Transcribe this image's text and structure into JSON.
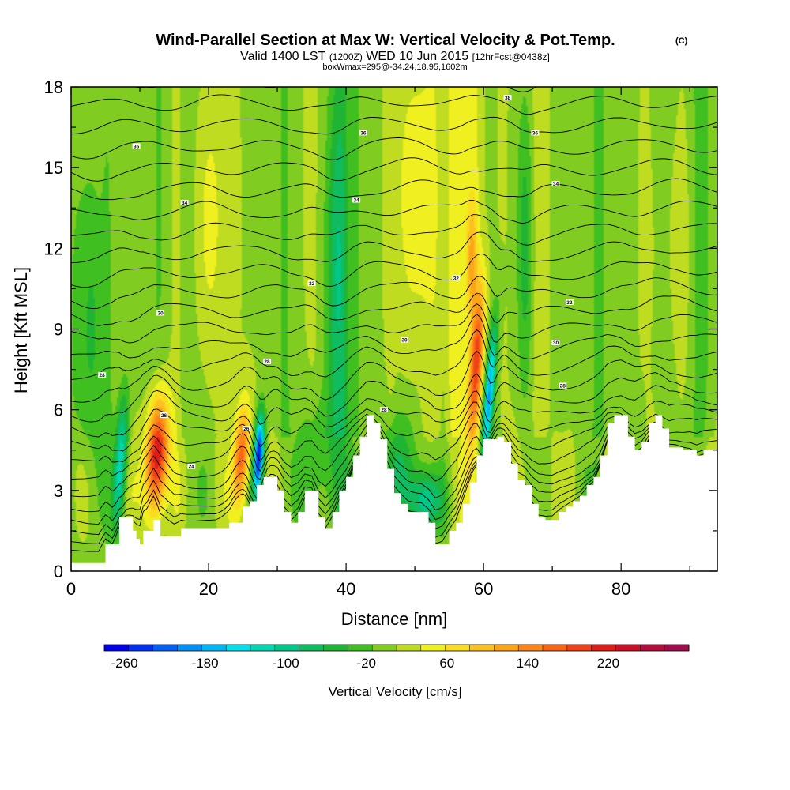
{
  "chart_data": {
    "type": "heatmap",
    "title": "Wind-Parallel Section at Max W: Vertical Velocity & Pot.Temp.",
    "title_mark": "(C)",
    "subtitle_parts": [
      "Valid 1400 LST",
      "(1200Z)",
      "WED 10 Jun 2015",
      "[12hrFcst@0438z]"
    ],
    "subtitle2": "boxWmax=295@-34.24,18.95,1602m",
    "xlabel": "Distance [nm]",
    "ylabel": "Height [Kft MSL]",
    "xlim": [
      0,
      94
    ],
    "ylim": [
      0,
      18
    ],
    "xticks": [
      0,
      20,
      40,
      60,
      80
    ],
    "yticks": [
      0,
      3,
      6,
      9,
      12,
      15,
      18
    ],
    "colorbar": {
      "label": "Vertical Velocity [cm/s]",
      "tick_values": [
        -260,
        -180,
        -100,
        -20,
        60,
        140,
        220
      ],
      "tick_labels": [
        "-260",
        "-180",
        "-100",
        "-20",
        "60",
        "140",
        "220"
      ],
      "range": [
        -280,
        300
      ],
      "colors": [
        "#0000ee",
        "#0030f0",
        "#0060f4",
        "#0090f6",
        "#00b8f8",
        "#00e0ee",
        "#00d8b4",
        "#00c888",
        "#10bc60",
        "#20b434",
        "#40c020",
        "#80cc20",
        "#c0dc20",
        "#f0f020",
        "#fcdc20",
        "#fcc020",
        "#fca418",
        "#fc8418",
        "#f86418",
        "#f04018",
        "#e01c18",
        "#cc1028",
        "#b40c3c",
        "#a00c4c"
      ]
    },
    "terrain": [
      [
        0,
        0.3
      ],
      [
        4,
        0.3
      ],
      [
        5,
        1
      ],
      [
        6,
        1
      ],
      [
        7,
        2
      ],
      [
        8,
        2
      ],
      [
        9,
        1.5
      ],
      [
        9.5,
        1.2
      ],
      [
        10,
        1
      ],
      [
        10.5,
        1.5
      ],
      [
        11,
        1.5
      ],
      [
        12,
        1.9
      ],
      [
        13,
        1.3
      ],
      [
        15,
        1.3
      ],
      [
        16,
        1.6
      ],
      [
        20,
        1.6
      ],
      [
        21,
        1.6
      ],
      [
        23,
        1.8
      ],
      [
        25,
        2.4
      ],
      [
        26,
        2.6
      ],
      [
        27,
        3.2
      ],
      [
        28,
        3.5
      ],
      [
        30,
        3
      ],
      [
        31,
        2.2
      ],
      [
        32,
        1.8
      ],
      [
        33,
        2.2
      ],
      [
        34,
        3
      ],
      [
        35,
        3
      ],
      [
        36,
        2
      ],
      [
        37,
        1.6
      ],
      [
        38,
        2.2
      ],
      [
        39,
        3
      ],
      [
        40,
        3.5
      ],
      [
        41,
        4.3
      ],
      [
        42,
        5
      ],
      [
        43,
        5.8
      ],
      [
        44,
        5.5
      ],
      [
        45,
        4.9
      ],
      [
        46,
        3.8
      ],
      [
        47,
        2.9
      ],
      [
        48,
        2.5
      ],
      [
        49,
        2.2
      ],
      [
        51,
        2.2
      ],
      [
        52,
        1.8
      ],
      [
        53,
        1
      ],
      [
        54,
        1
      ],
      [
        55,
        1.5
      ],
      [
        56,
        1.8
      ],
      [
        57,
        2.5
      ],
      [
        58,
        3.3
      ],
      [
        59,
        4.3
      ],
      [
        60,
        4.9
      ],
      [
        61,
        4.9
      ],
      [
        62,
        5
      ],
      [
        63,
        4.8
      ],
      [
        64,
        4
      ],
      [
        65,
        3.4
      ],
      [
        66,
        3.2
      ],
      [
        67,
        2.5
      ],
      [
        68,
        2
      ],
      [
        69,
        1.9
      ],
      [
        70,
        1.9
      ],
      [
        71,
        2.2
      ],
      [
        72,
        2.4
      ],
      [
        73,
        2.6
      ],
      [
        74,
        2.8
      ],
      [
        75,
        3.2
      ],
      [
        76,
        3.5
      ],
      [
        77,
        4.3
      ],
      [
        78,
        5.5
      ],
      [
        79,
        5.8
      ],
      [
        80,
        5.8
      ],
      [
        81,
        5
      ],
      [
        82,
        4.5
      ],
      [
        83,
        4.8
      ],
      [
        84,
        5.5
      ],
      [
        85,
        5.8
      ],
      [
        86,
        5.3
      ],
      [
        87,
        4.6
      ],
      [
        88,
        4.6
      ],
      [
        89,
        4.5
      ],
      [
        90,
        4.5
      ],
      [
        91,
        4.3
      ],
      [
        92,
        4.5
      ],
      [
        94,
        4.5
      ]
    ],
    "velocity_features": [
      {
        "x": 12.5,
        "z": 4.3,
        "sx": 1.6,
        "sz": 2.2,
        "w": 240,
        "tilt": 0.18
      },
      {
        "x": 24.8,
        "z": 4.3,
        "sx": 1.1,
        "sz": 1.8,
        "w": 160,
        "tilt": 0.22
      },
      {
        "x": 59.0,
        "z": 7.8,
        "sx": 0.9,
        "sz": 2.8,
        "w": 160,
        "tilt": 0.25
      },
      {
        "x": 58.3,
        "z": 11.5,
        "sx": 0.8,
        "sz": 2.2,
        "w": 80,
        "tilt": 0.0
      },
      {
        "x": 7.2,
        "z": 4.0,
        "sx": 0.9,
        "sz": 2.5,
        "w": -140,
        "tilt": 0.2
      },
      {
        "x": 27.3,
        "z": 4.3,
        "sx": 0.7,
        "sz": 1.5,
        "w": -260,
        "tilt": 0.2
      },
      {
        "x": 60.8,
        "z": 6.5,
        "sx": 0.7,
        "sz": 2.6,
        "w": -190,
        "tilt": 0.3
      },
      {
        "x": 51.5,
        "z": 2.6,
        "sx": 2.5,
        "sz": 1.2,
        "w": -120,
        "tilt": 0.0
      },
      {
        "x": 48.0,
        "z": 4.0,
        "sx": 2.8,
        "sz": 2.0,
        "w": -60,
        "tilt": 0.0
      },
      {
        "x": 36.0,
        "z": 4.0,
        "sx": 3.0,
        "sz": 2.5,
        "w": -50,
        "tilt": 0.0
      },
      {
        "x": 3.0,
        "z": 9.0,
        "sx": 2.0,
        "sz": 6.0,
        "w": -50,
        "tilt": 0.0
      },
      {
        "x": 38.5,
        "z": 11.0,
        "sx": 1.5,
        "sz": 6.0,
        "w": -60,
        "tilt": 0.0
      },
      {
        "x": 66.0,
        "z": 12.0,
        "sx": 1.2,
        "sz": 6.0,
        "w": -60,
        "tilt": 0.0
      },
      {
        "x": 20.0,
        "z": 13.0,
        "sx": 2.0,
        "sz": 5.0,
        "w": 40,
        "tilt": 0.0
      },
      {
        "x": 50.0,
        "z": 14.0,
        "sx": 2.5,
        "sz": 5.0,
        "w": 45,
        "tilt": 0.0
      },
      {
        "x": 88.0,
        "z": 12.0,
        "sx": 2.0,
        "sz": 6.0,
        "w": 35,
        "tilt": 0.0
      }
    ],
    "theta_contour_levels": 27,
    "contour_labels": [
      {
        "x": 9.5,
        "z": 15.8,
        "text": "36"
      },
      {
        "x": 16.5,
        "z": 13.7,
        "text": "34"
      },
      {
        "x": 42.5,
        "z": 16.3,
        "text": "36"
      },
      {
        "x": 63.5,
        "z": 17.6,
        "text": "38"
      },
      {
        "x": 67.5,
        "z": 16.3,
        "text": "36"
      },
      {
        "x": 41.5,
        "z": 13.8,
        "text": "34"
      },
      {
        "x": 70.5,
        "z": 14.4,
        "text": "34"
      },
      {
        "x": 35.0,
        "z": 10.7,
        "text": "32"
      },
      {
        "x": 56.0,
        "z": 10.9,
        "text": "32"
      },
      {
        "x": 72.5,
        "z": 10.0,
        "text": "32"
      },
      {
        "x": 13.0,
        "z": 9.6,
        "text": "30"
      },
      {
        "x": 48.5,
        "z": 8.6,
        "text": "30"
      },
      {
        "x": 70.5,
        "z": 8.5,
        "text": "30"
      },
      {
        "x": 4.5,
        "z": 7.3,
        "text": "28"
      },
      {
        "x": 28.5,
        "z": 7.8,
        "text": "28"
      },
      {
        "x": 45.5,
        "z": 6.0,
        "text": "28"
      },
      {
        "x": 71.5,
        "z": 6.9,
        "text": "28"
      },
      {
        "x": 13.5,
        "z": 5.8,
        "text": "26"
      },
      {
        "x": 25.5,
        "z": 5.3,
        "text": "26"
      },
      {
        "x": 17.5,
        "z": 3.9,
        "text": "24"
      }
    ]
  }
}
